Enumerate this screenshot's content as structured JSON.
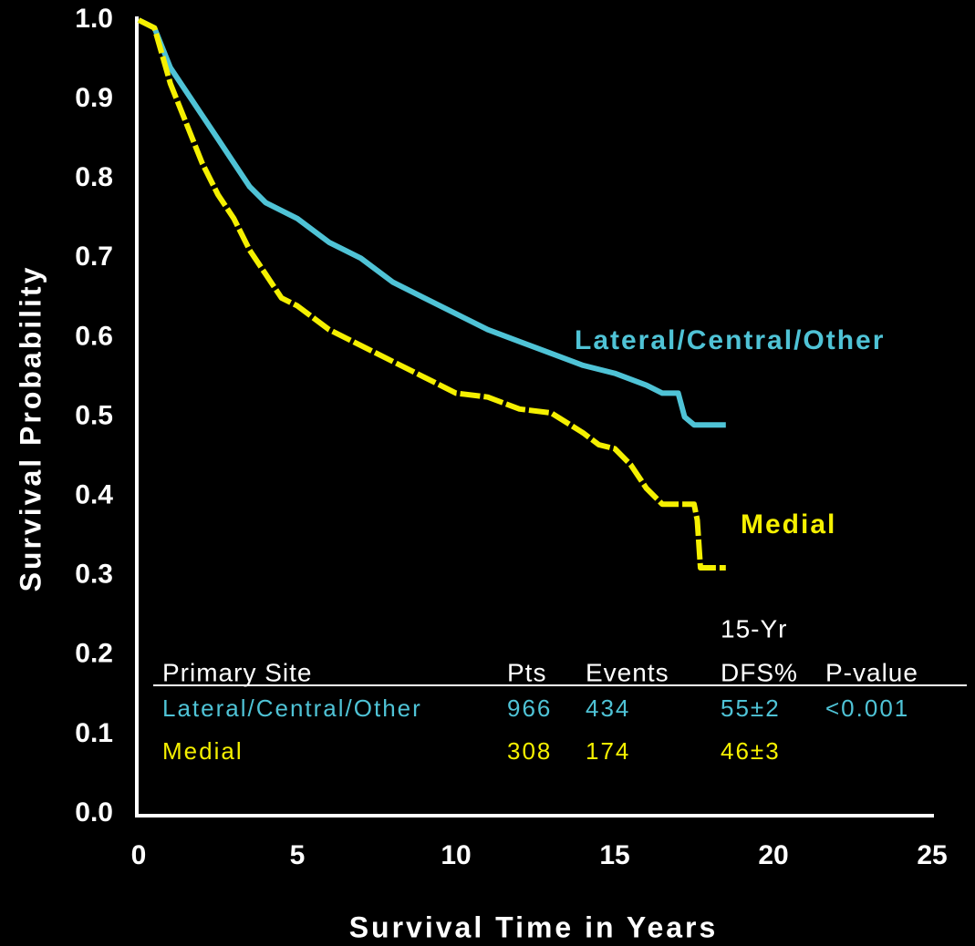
{
  "chart_data": {
    "type": "line",
    "x_label": "Survival Time in Years",
    "y_label": "Survival Probability",
    "xlim": [
      0,
      25
    ],
    "xticks": [
      0,
      5,
      10,
      15,
      20,
      25
    ],
    "ylim": [
      0,
      1
    ],
    "yticks": [
      {
        "value": 0,
        "label": "0.0"
      },
      0.1,
      0.2,
      0.3,
      0.4,
      0.5,
      0.6,
      0.7,
      0.8,
      0.9,
      {
        "value": 1,
        "label": "1.0"
      }
    ],
    "grid": false,
    "series": [
      {
        "name": "Lateral/Central/Other",
        "color": "#4fc3d6",
        "dash": false,
        "x": [
          0,
          0.5,
          1,
          1.5,
          2,
          2.5,
          3,
          3.5,
          4,
          5,
          6,
          7,
          8,
          9,
          10,
          11,
          12,
          13,
          14,
          15,
          16,
          16.5,
          17,
          17.2,
          17.5,
          18.5
        ],
        "values": [
          1.0,
          0.99,
          0.94,
          0.91,
          0.88,
          0.85,
          0.82,
          0.79,
          0.77,
          0.75,
          0.72,
          0.7,
          0.67,
          0.65,
          0.63,
          0.61,
          0.595,
          0.58,
          0.565,
          0.555,
          0.54,
          0.53,
          0.53,
          0.5,
          0.49,
          0.49
        ]
      },
      {
        "name": "Medial",
        "color": "#f5f000",
        "dash": true,
        "x": [
          0,
          0.5,
          1,
          1.5,
          2,
          2.5,
          3,
          3.5,
          4,
          4.5,
          5,
          6,
          7,
          8,
          9,
          10,
          11,
          12,
          13,
          14,
          14.5,
          15,
          15.5,
          16,
          16.5,
          17,
          17.5,
          17.6,
          17.7,
          18.5
        ],
        "values": [
          1.0,
          0.99,
          0.92,
          0.87,
          0.82,
          0.78,
          0.75,
          0.71,
          0.68,
          0.65,
          0.64,
          0.61,
          0.59,
          0.57,
          0.55,
          0.53,
          0.525,
          0.51,
          0.505,
          0.48,
          0.465,
          0.46,
          0.44,
          0.41,
          0.39,
          0.39,
          0.39,
          0.37,
          0.31,
          0.31
        ]
      }
    ],
    "table": {
      "header_above": "15-Yr",
      "header": [
        "Primary Site",
        "Pts",
        "Events",
        "DFS%",
        "P-value"
      ],
      "rows": [
        [
          "Lateral/Central/Other",
          "966",
          "434",
          "55±2",
          "<0.001"
        ],
        [
          "Medial",
          "308",
          "174",
          "46±3",
          ""
        ]
      ]
    }
  }
}
